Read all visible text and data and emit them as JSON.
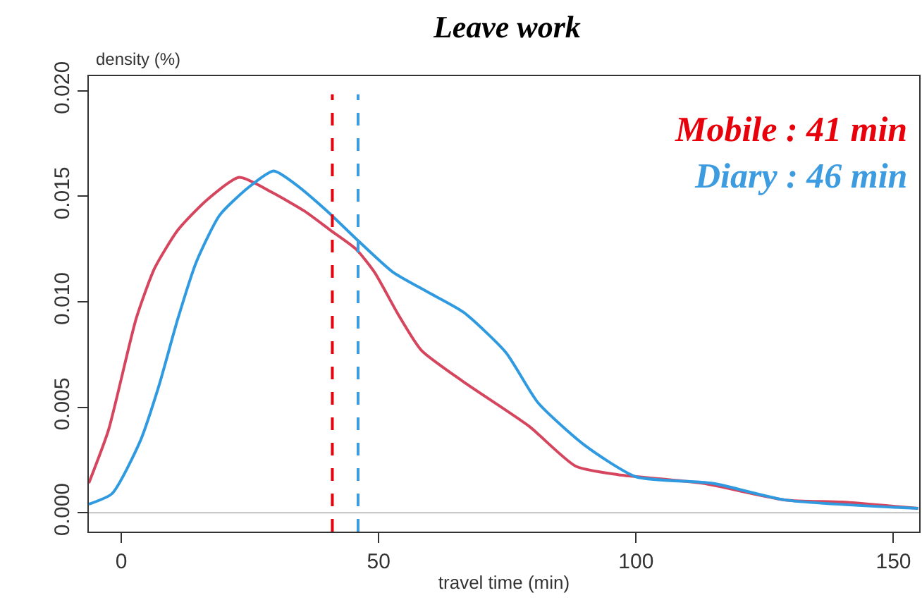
{
  "chart_data": {
    "type": "line",
    "title": "Leave work",
    "xlabel": "travel time (min)",
    "ylabel": "density (%)",
    "xlim": [
      -6.3,
      155
    ],
    "xticks": [
      0,
      50,
      100,
      150
    ],
    "ylim": [
      -0.0009,
      0.0207
    ],
    "yticks": [
      {
        "value": 0,
        "label": "0.000"
      },
      {
        "value": 0.005,
        "label": "0.005"
      },
      {
        "value": 0.01,
        "label": "0.010"
      },
      {
        "value": 0.015,
        "label": "0.015"
      },
      {
        "value": 0.02,
        "label": "0.020"
      }
    ],
    "grid": false,
    "marker": "none",
    "line_style": "solid",
    "series": [
      {
        "color": "#d6455e",
        "x": [
          -6.3,
          -2.5,
          2.9,
          6.5,
          11,
          16.5,
          22.9,
          29.2,
          35.6,
          40.6,
          45.6,
          49.2,
          53.8,
          58.3,
          66.5,
          79.2,
          88.3,
          96.5,
          112.8,
          129,
          140,
          154.8
        ],
        "values": [
          0.0014,
          0.0039,
          0.0092,
          0.0116,
          0.0134,
          0.0148,
          0.0159,
          0.0152,
          0.0143,
          0.0134,
          0.0125,
          0.0114,
          0.0094,
          0.0077,
          0.0062,
          0.0041,
          0.0022,
          0.0018,
          0.0014,
          0.0006,
          0.0005,
          0.0002
        ]
      },
      {
        "color": "#2f9ae0",
        "x": [
          -6.3,
          -1.8,
          3.7,
          7.3,
          11,
          14.6,
          19.1,
          24.6,
          29.6,
          33.7,
          40,
          46,
          52.8,
          60,
          66.5,
          74.7,
          81,
          90,
          100,
          114.7,
          129,
          154.8
        ],
        "values": [
          0.0004,
          0.0009,
          0.0034,
          0.006,
          0.0092,
          0.0119,
          0.0141,
          0.0154,
          0.0162,
          0.0156,
          0.0143,
          0.0129,
          0.0114,
          0.0104,
          0.0095,
          0.0076,
          0.0052,
          0.0032,
          0.0017,
          0.0014,
          0.0006,
          0.0002
        ]
      }
    ],
    "ref_lines": [
      {
        "axis": "y",
        "value": 0,
        "color": "#c8c8c8",
        "line_style": "solid"
      },
      {
        "axis": "x",
        "value": 41,
        "label": "Mobile : 41 min",
        "color": "#e8000b",
        "line_style": "dashed"
      },
      {
        "axis": "x",
        "value": 46,
        "label": "Diary : 46 min",
        "color": "#3d9be0",
        "line_style": "dashed"
      }
    ]
  }
}
